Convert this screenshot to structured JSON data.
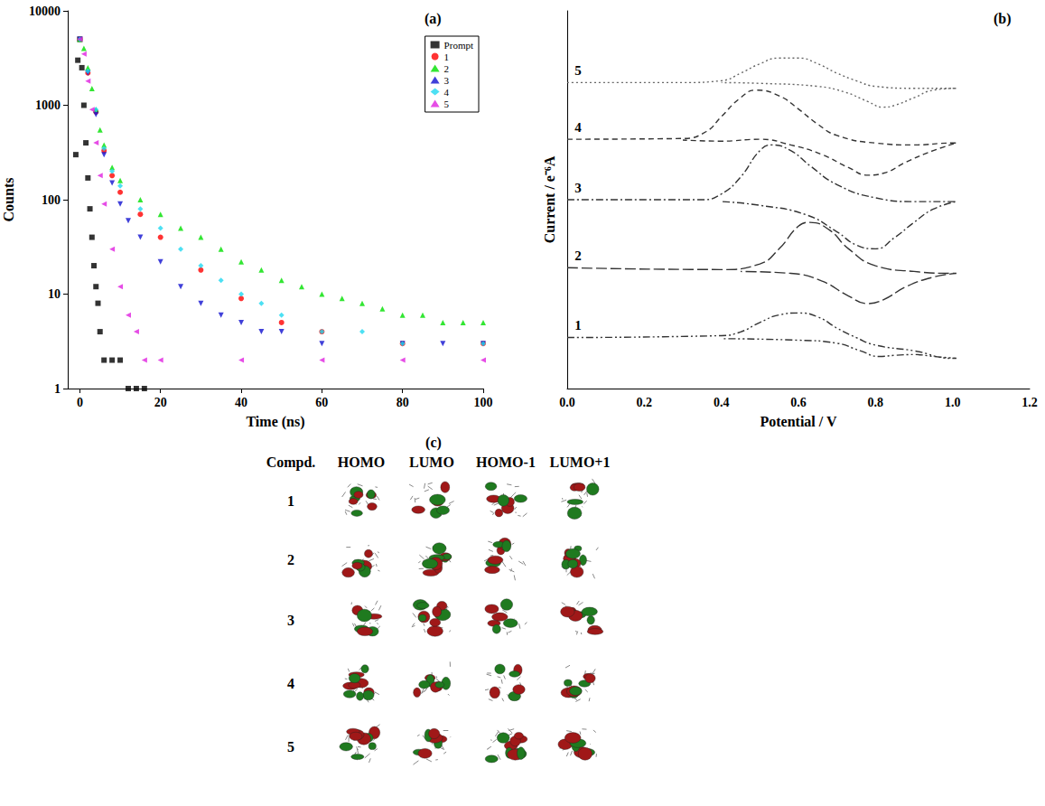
{
  "chart_data": [
    {
      "type": "scatter",
      "title": "(a)",
      "x_label": "Time (ns)",
      "y_label": "Counts",
      "xlim": [
        -3,
        100
      ],
      "xticks": [
        0,
        20,
        40,
        60,
        80,
        100
      ],
      "ylim": [
        1,
        10000
      ],
      "yticks": [
        1,
        10,
        100,
        1000,
        10000
      ],
      "log": "y",
      "legend": "upper right",
      "series": [
        {
          "name": "Prompt",
          "color": "#000000",
          "marker": "square",
          "x": [
            -1,
            -0.5,
            0,
            0.5,
            1,
            1.5,
            2,
            2.5,
            3,
            3.5,
            4,
            4.5,
            5,
            6,
            8,
            10,
            12,
            14,
            16
          ],
          "values": [
            300,
            3000,
            5000,
            2500,
            1000,
            400,
            170,
            80,
            40,
            20,
            12,
            8,
            4,
            2,
            2,
            2,
            1,
            1,
            1
          ]
        },
        {
          "name": "1",
          "color": "#ff0000",
          "marker": "circle",
          "x": [
            0,
            2,
            4,
            6,
            8,
            10,
            15,
            20,
            30,
            40,
            50,
            60,
            80,
            100
          ],
          "values": [
            5000,
            2200,
            850,
            330,
            180,
            120,
            70,
            40,
            18,
            9,
            5,
            4,
            3,
            3
          ]
        },
        {
          "name": "2",
          "color": "#00e000",
          "marker": "triangle_up",
          "x": [
            0,
            1,
            2,
            3,
            4,
            5,
            6,
            8,
            10,
            15,
            20,
            25,
            30,
            35,
            40,
            45,
            50,
            55,
            60,
            65,
            70,
            75,
            80,
            85,
            90,
            95,
            100
          ],
          "values": [
            5000,
            4000,
            2500,
            1500,
            900,
            550,
            380,
            220,
            160,
            100,
            70,
            50,
            40,
            30,
            22,
            18,
            14,
            12,
            10,
            9,
            8,
            7,
            6,
            6,
            5,
            5,
            5
          ]
        },
        {
          "name": "3",
          "color": "#1010d0",
          "marker": "triangle_down",
          "x": [
            0,
            2,
            4,
            6,
            8,
            10,
            12,
            15,
            20,
            25,
            30,
            35,
            40,
            45,
            50,
            60,
            80,
            90,
            100
          ],
          "values": [
            5000,
            2200,
            800,
            300,
            150,
            90,
            60,
            40,
            22,
            12,
            8,
            6,
            5,
            4,
            4,
            3,
            3,
            3,
            3
          ]
        },
        {
          "name": "4",
          "color": "#20d8f0",
          "marker": "diamond",
          "x": [
            0,
            2,
            4,
            6,
            8,
            10,
            15,
            20,
            25,
            30,
            35,
            40,
            45,
            50,
            60,
            70,
            80,
            100
          ],
          "values": [
            5000,
            2300,
            900,
            350,
            200,
            140,
            80,
            50,
            30,
            20,
            14,
            10,
            8,
            6,
            4,
            4,
            3,
            3
          ]
        },
        {
          "name": "5",
          "color": "#e020e0",
          "marker": "triangle_left",
          "x": [
            0,
            1,
            2,
            3,
            4,
            5,
            6,
            8,
            10,
            12,
            14,
            16,
            20,
            40,
            60,
            80,
            100
          ],
          "values": [
            5000,
            3500,
            1800,
            900,
            400,
            180,
            90,
            30,
            12,
            6,
            4,
            2,
            2,
            2,
            2,
            2,
            2
          ]
        }
      ]
    },
    {
      "type": "line",
      "title": "(b)",
      "x_label": "Potential / V",
      "y_label": "Current / e⁻⁶A",
      "xlim": [
        0,
        1.2
      ],
      "xticks": [
        {
          "value": 0,
          "label": "0.0"
        },
        0.2,
        0.4,
        0.6,
        0.8,
        {
          "value": 1,
          "label": "1.0"
        },
        1.2
      ],
      "ylim": [
        0,
        10
      ],
      "tick_labels": "x",
      "series": [
        {
          "name": "1",
          "color": "#333333",
          "line_style": "dashdotdot",
          "x": [
            0,
            0.4,
            0.45,
            0.5,
            0.55,
            0.6,
            0.65,
            0.7,
            0.75,
            0.8,
            0.9,
            1.0,
            1.01,
            0.95,
            0.9,
            0.85,
            0.81,
            0.76,
            0.7,
            0.6,
            0.4
          ],
          "values": [
            1.35,
            1.4,
            1.5,
            1.75,
            1.95,
            2.0,
            1.9,
            1.6,
            1.35,
            1.15,
            1.0,
            0.8,
            0.8,
            0.85,
            0.9,
            0.88,
            0.85,
            1.0,
            1.2,
            1.28,
            1.32
          ]
        },
        {
          "name": "2",
          "color": "#333333",
          "line_style": "longdash",
          "x": [
            0,
            0.4,
            0.5,
            0.55,
            0.6,
            0.63,
            0.68,
            0.73,
            0.8,
            0.9,
            1.0,
            1.01,
            0.95,
            0.88,
            0.82,
            0.78,
            0.73,
            0.66,
            0.58,
            0.45
          ],
          "values": [
            3.2,
            3.15,
            3.3,
            3.7,
            4.3,
            4.4,
            4.2,
            3.7,
            3.25,
            3.1,
            3.05,
            3.05,
            2.95,
            2.7,
            2.35,
            2.25,
            2.45,
            2.85,
            3.05,
            3.1
          ]
        },
        {
          "name": "3",
          "color": "#333333",
          "line_style": "dashdot",
          "x": [
            0,
            0.35,
            0.4,
            0.45,
            0.5,
            0.53,
            0.58,
            0.63,
            0.7,
            0.8,
            0.9,
            1.0,
            1.01,
            0.95,
            0.9,
            0.85,
            0.8,
            0.75,
            0.7,
            0.62,
            0.5,
            0.4
          ],
          "values": [
            5.0,
            5.0,
            5.15,
            5.6,
            6.3,
            6.45,
            6.3,
            5.9,
            5.4,
            5.05,
            4.95,
            4.95,
            4.95,
            4.75,
            4.4,
            4.0,
            3.7,
            3.8,
            4.15,
            4.6,
            4.85,
            4.95
          ]
        },
        {
          "name": "4",
          "color": "#333333",
          "line_style": "dashed",
          "x": [
            0,
            0.3,
            0.36,
            0.4,
            0.45,
            0.49,
            0.55,
            0.6,
            0.65,
            0.7,
            0.8,
            0.9,
            1.0,
            1.01,
            0.95,
            0.88,
            0.82,
            0.78,
            0.73,
            0.66,
            0.58,
            0.5,
            0.4,
            0.3
          ],
          "values": [
            6.6,
            6.62,
            6.8,
            7.2,
            7.7,
            7.9,
            7.75,
            7.4,
            7.0,
            6.7,
            6.5,
            6.45,
            6.5,
            6.5,
            6.3,
            6.0,
            5.7,
            5.65,
            5.85,
            6.2,
            6.45,
            6.6,
            6.55,
            6.58
          ]
        },
        {
          "name": "5",
          "color": "#666666",
          "line_style": "dotted",
          "x": [
            0,
            0.3,
            0.4,
            0.45,
            0.5,
            0.55,
            0.6,
            0.65,
            0.7,
            0.75,
            0.8,
            0.9,
            1.0,
            1.01,
            0.95,
            0.9,
            0.85,
            0.82,
            0.78,
            0.72,
            0.65,
            0.5,
            0.4
          ],
          "values": [
            8.1,
            8.1,
            8.15,
            8.35,
            8.6,
            8.75,
            8.75,
            8.6,
            8.35,
            8.15,
            8.0,
            7.95,
            7.95,
            7.95,
            7.9,
            7.7,
            7.5,
            7.45,
            7.6,
            7.85,
            8.0,
            8.08,
            8.1
          ]
        }
      ]
    }
  ],
  "table": {
    "title": "(c)",
    "header": [
      "Compd.",
      "HOMO",
      "LUMO",
      "HOMO-1",
      "LUMO+1"
    ],
    "rows": [
      "1",
      "2",
      "3",
      "4",
      "5"
    ]
  }
}
